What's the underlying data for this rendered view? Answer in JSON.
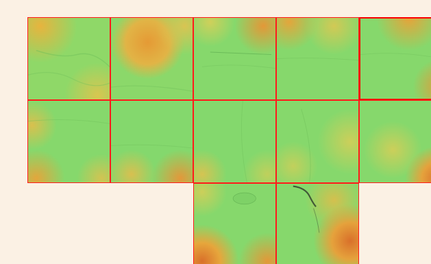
{
  "map": {
    "background_color": "#fbf1e4",
    "tile_border_color": "#ff1a1a",
    "selected_tile_border_color": "#ff0000",
    "color_ramp": {
      "low": "#7fd96b",
      "mid": "#c9d35a",
      "high": "#e8a43a",
      "peak": "#d9702a"
    },
    "tiles": [
      {
        "row": 0,
        "col": 0,
        "selected": false
      },
      {
        "row": 0,
        "col": 1,
        "selected": false
      },
      {
        "row": 0,
        "col": 2,
        "selected": false
      },
      {
        "row": 0,
        "col": 3,
        "selected": false
      },
      {
        "row": 0,
        "col": 4,
        "selected": true
      },
      {
        "row": 1,
        "col": 0,
        "selected": false
      },
      {
        "row": 1,
        "col": 1,
        "selected": false
      },
      {
        "row": 1,
        "col": 2,
        "selected": false
      },
      {
        "row": 1,
        "col": 3,
        "selected": false
      },
      {
        "row": 1,
        "col": 4,
        "selected": false
      },
      {
        "row": 2,
        "col": 2,
        "selected": false
      },
      {
        "row": 2,
        "col": 3,
        "selected": false
      }
    ]
  }
}
